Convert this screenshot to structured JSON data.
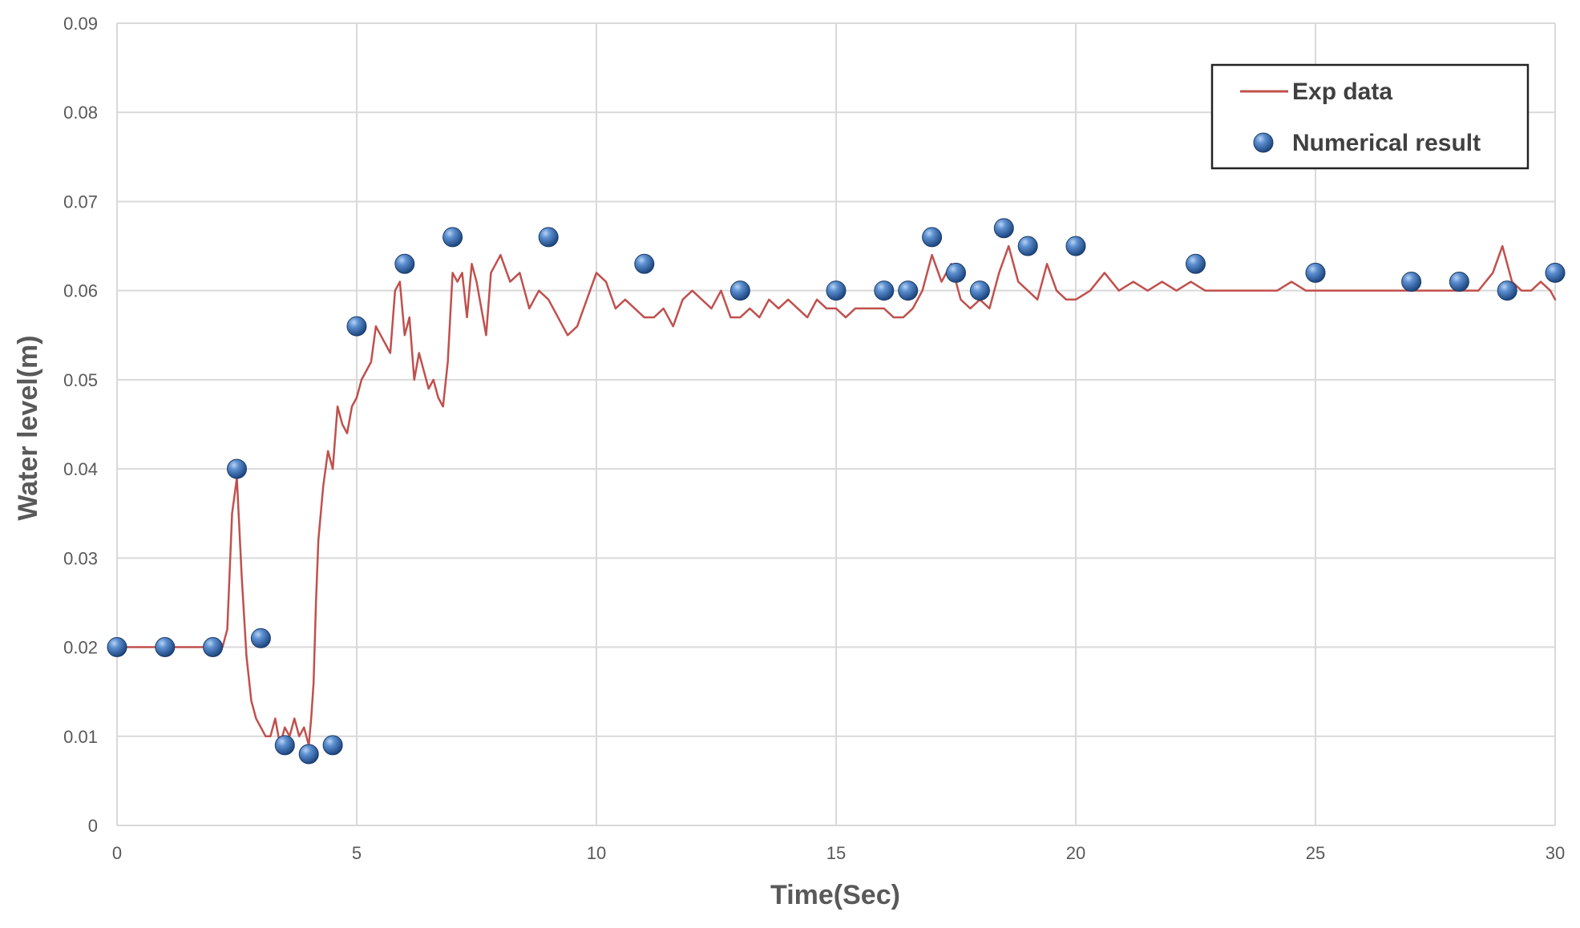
{
  "chart_data": {
    "type": "line",
    "title": "",
    "xlabel": "Time(Sec)",
    "ylabel": "Water level(m)",
    "xlim": [
      0,
      30
    ],
    "ylim": [
      0,
      0.09
    ],
    "x_ticks": [
      0,
      5,
      10,
      15,
      20,
      25,
      30
    ],
    "y_ticks": [
      0,
      0.01,
      0.02,
      0.03,
      0.04,
      0.05,
      0.06,
      0.07,
      0.08,
      0.09
    ],
    "x_tick_labels": [
      "0",
      "5",
      "10",
      "15",
      "20",
      "25",
      "30"
    ],
    "y_tick_labels": [
      "0",
      "0.01",
      "0.02",
      "0.03",
      "0.04",
      "0.05",
      "0.06",
      "0.07",
      "0.08",
      "0.09"
    ],
    "grid": true,
    "legend_position": "top-right",
    "series": [
      {
        "name": "Exp data",
        "type": "line",
        "color": "#c0504d",
        "x": [
          0,
          0.5,
          1,
          1.5,
          2,
          2.2,
          2.3,
          2.4,
          2.5,
          2.6,
          2.7,
          2.8,
          2.9,
          3.0,
          3.1,
          3.2,
          3.3,
          3.4,
          3.5,
          3.6,
          3.7,
          3.8,
          3.9,
          4.0,
          4.05,
          4.1,
          4.15,
          4.2,
          4.3,
          4.4,
          4.5,
          4.6,
          4.7,
          4.8,
          4.9,
          5.0,
          5.1,
          5.2,
          5.3,
          5.4,
          5.5,
          5.6,
          5.7,
          5.8,
          5.9,
          6.0,
          6.1,
          6.2,
          6.3,
          6.4,
          6.5,
          6.6,
          6.7,
          6.8,
          6.9,
          7.0,
          7.1,
          7.2,
          7.3,
          7.4,
          7.5,
          7.6,
          7.7,
          7.8,
          7.9,
          8.0,
          8.2,
          8.4,
          8.6,
          8.8,
          9.0,
          9.2,
          9.4,
          9.6,
          9.8,
          10.0,
          10.2,
          10.4,
          10.6,
          10.8,
          11.0,
          11.2,
          11.4,
          11.6,
          11.8,
          12.0,
          12.2,
          12.4,
          12.6,
          12.8,
          13.0,
          13.2,
          13.4,
          13.6,
          13.8,
          14.0,
          14.2,
          14.4,
          14.6,
          14.8,
          15.0,
          15.2,
          15.4,
          15.6,
          15.8,
          16.0,
          16.2,
          16.4,
          16.6,
          16.8,
          17.0,
          17.2,
          17.4,
          17.6,
          17.8,
          18.0,
          18.2,
          18.4,
          18.6,
          18.8,
          19.0,
          19.2,
          19.4,
          19.6,
          19.8,
          20.0,
          20.3,
          20.6,
          20.9,
          21.2,
          21.5,
          21.8,
          22.1,
          22.4,
          22.7,
          23.0,
          23.3,
          23.6,
          23.9,
          24.2,
          24.5,
          24.8,
          25.1,
          25.4,
          25.7,
          26.0,
          26.3,
          26.6,
          26.9,
          27.2,
          27.5,
          27.8,
          28.1,
          28.4,
          28.7,
          28.9,
          29.1,
          29.3,
          29.5,
          29.7,
          29.9,
          30.0
        ],
        "values": [
          0.02,
          0.02,
          0.02,
          0.02,
          0.02,
          0.02,
          0.022,
          0.035,
          0.039,
          0.028,
          0.019,
          0.014,
          0.012,
          0.011,
          0.01,
          0.01,
          0.012,
          0.009,
          0.011,
          0.01,
          0.012,
          0.01,
          0.011,
          0.009,
          0.012,
          0.016,
          0.025,
          0.032,
          0.038,
          0.042,
          0.04,
          0.047,
          0.045,
          0.044,
          0.047,
          0.048,
          0.05,
          0.051,
          0.052,
          0.056,
          0.055,
          0.054,
          0.053,
          0.06,
          0.061,
          0.055,
          0.057,
          0.05,
          0.053,
          0.051,
          0.049,
          0.05,
          0.048,
          0.047,
          0.052,
          0.062,
          0.061,
          0.062,
          0.057,
          0.063,
          0.061,
          0.058,
          0.055,
          0.062,
          0.063,
          0.064,
          0.061,
          0.062,
          0.058,
          0.06,
          0.059,
          0.057,
          0.055,
          0.056,
          0.059,
          0.062,
          0.061,
          0.058,
          0.059,
          0.058,
          0.057,
          0.057,
          0.058,
          0.056,
          0.059,
          0.06,
          0.059,
          0.058,
          0.06,
          0.057,
          0.057,
          0.058,
          0.057,
          0.059,
          0.058,
          0.059,
          0.058,
          0.057,
          0.059,
          0.058,
          0.058,
          0.057,
          0.058,
          0.058,
          0.058,
          0.058,
          0.057,
          0.057,
          0.058,
          0.06,
          0.064,
          0.061,
          0.063,
          0.059,
          0.058,
          0.059,
          0.058,
          0.062,
          0.065,
          0.061,
          0.06,
          0.059,
          0.063,
          0.06,
          0.059,
          0.059,
          0.06,
          0.062,
          0.06,
          0.061,
          0.06,
          0.061,
          0.06,
          0.061,
          0.06,
          0.06,
          0.06,
          0.06,
          0.06,
          0.06,
          0.061,
          0.06,
          0.06,
          0.06,
          0.06,
          0.06,
          0.06,
          0.06,
          0.06,
          0.06,
          0.06,
          0.06,
          0.06,
          0.06,
          0.062,
          0.065,
          0.061,
          0.06,
          0.06,
          0.061,
          0.06,
          0.059
        ]
      },
      {
        "name": "Numerical result",
        "type": "scatter",
        "color": "#2e5f9e",
        "x": [
          0,
          1,
          2,
          2.5,
          3,
          3.5,
          4,
          4.5,
          5,
          6,
          7,
          9,
          11,
          13,
          15,
          16,
          16.5,
          17,
          17.5,
          18,
          18.5,
          19,
          20,
          22.5,
          25,
          27,
          28,
          29,
          30
        ],
        "values": [
          0.02,
          0.02,
          0.02,
          0.04,
          0.021,
          0.009,
          0.008,
          0.009,
          0.056,
          0.063,
          0.066,
          0.066,
          0.063,
          0.06,
          0.06,
          0.06,
          0.06,
          0.066,
          0.062,
          0.06,
          0.067,
          0.065,
          0.065,
          0.063,
          0.062,
          0.061,
          0.061,
          0.06,
          0.062
        ]
      }
    ]
  }
}
